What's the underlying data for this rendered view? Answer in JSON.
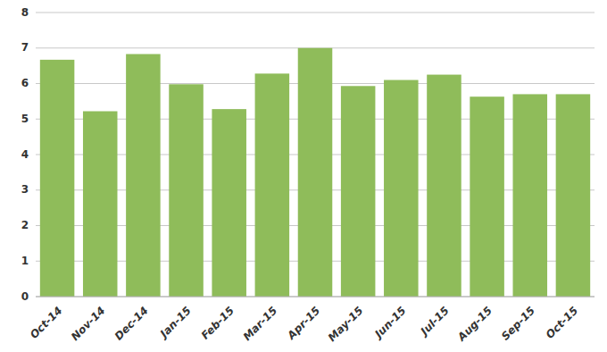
{
  "chart_data": {
    "type": "bar",
    "categories": [
      "Oct-14",
      "Nov-14",
      "Dec-14",
      "Jan-15",
      "Feb-15",
      "Mar-15",
      "Apr-15",
      "May-15",
      "Jun-15",
      "Jul-15",
      "Aug-15",
      "Sep-15",
      "Oct-15"
    ],
    "values": [
      6.67,
      5.22,
      6.83,
      5.98,
      5.28,
      6.28,
      7.0,
      5.93,
      6.1,
      6.25,
      5.63,
      5.7,
      5.7
    ],
    "color": "#8fbc5a",
    "ylim": [
      0,
      8
    ],
    "yticks": [
      0,
      1,
      2,
      3,
      4,
      5,
      6,
      7,
      8
    ],
    "grid": true
  }
}
